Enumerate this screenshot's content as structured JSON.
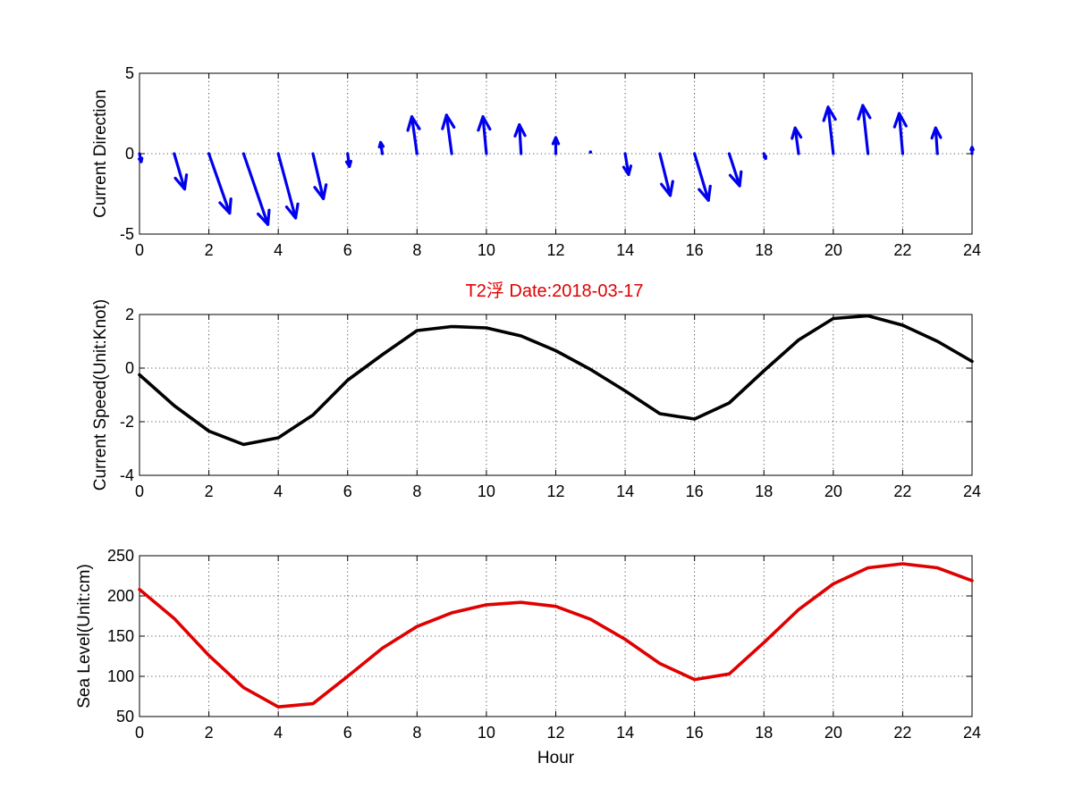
{
  "title": "T2浮   Date:2018-03-17",
  "colors": {
    "title": "#e00000",
    "direction": "#0000ee",
    "speed": "#000000",
    "sea_level": "#e00000"
  },
  "chart_data": [
    {
      "type": "quiver",
      "ylabel": "Current Direction",
      "xlabel": "",
      "xlim": [
        0,
        24
      ],
      "ylim": [
        -5,
        5
      ],
      "xticks": [
        0,
        2,
        4,
        6,
        8,
        10,
        12,
        14,
        16,
        18,
        20,
        22,
        24
      ],
      "yticks": [
        -5,
        0,
        5
      ],
      "grid": true,
      "x": [
        0,
        1,
        2,
        3,
        4,
        5,
        6,
        7,
        8,
        9,
        10,
        11,
        12,
        13,
        14,
        15,
        16,
        17,
        18,
        19,
        20,
        21,
        22,
        23,
        24
      ],
      "u": [
        0.05,
        0.3,
        0.6,
        0.7,
        0.5,
        0.3,
        0.05,
        -0.05,
        -0.15,
        -0.15,
        -0.1,
        -0.05,
        0,
        0,
        0.1,
        0.3,
        0.4,
        0.3,
        0.05,
        -0.1,
        -0.15,
        -0.15,
        -0.1,
        -0.05,
        0
      ],
      "v": [
        -0.5,
        -2.2,
        -3.7,
        -4.4,
        -4.0,
        -2.8,
        -0.8,
        0.7,
        2.3,
        2.4,
        2.3,
        1.8,
        1.0,
        0.1,
        -1.3,
        -2.6,
        -2.9,
        -2.0,
        -0.3,
        1.6,
        2.9,
        3.0,
        2.5,
        1.6,
        0.4
      ]
    },
    {
      "type": "line",
      "ylabel": "Current Speed(Unit:Knot)",
      "xlabel": "",
      "xlim": [
        0,
        24
      ],
      "ylim": [
        -4,
        2
      ],
      "xticks": [
        0,
        2,
        4,
        6,
        8,
        10,
        12,
        14,
        16,
        18,
        20,
        22,
        24
      ],
      "yticks": [
        -4,
        -2,
        0,
        2
      ],
      "grid": true,
      "x": [
        0,
        1,
        2,
        3,
        4,
        5,
        6,
        7,
        8,
        9,
        10,
        11,
        12,
        13,
        14,
        15,
        16,
        17,
        18,
        19,
        20,
        21,
        22,
        23,
        24
      ],
      "values": [
        -0.25,
        -1.4,
        -2.35,
        -2.85,
        -2.6,
        -1.75,
        -0.45,
        0.5,
        1.4,
        1.55,
        1.5,
        1.2,
        0.65,
        -0.05,
        -0.85,
        -1.7,
        -1.9,
        -1.3,
        -0.1,
        1.05,
        1.85,
        1.95,
        1.6,
        1.0,
        0.25
      ]
    },
    {
      "type": "line",
      "ylabel": "Sea Level(Unit:cm)",
      "xlabel": "Hour",
      "xlim": [
        0,
        24
      ],
      "ylim": [
        50,
        250
      ],
      "xticks": [
        0,
        2,
        4,
        6,
        8,
        10,
        12,
        14,
        16,
        18,
        20,
        22,
        24
      ],
      "yticks": [
        50,
        100,
        150,
        200,
        250
      ],
      "grid": true,
      "x": [
        0,
        1,
        2,
        3,
        4,
        5,
        6,
        7,
        8,
        9,
        10,
        11,
        12,
        13,
        14,
        15,
        16,
        17,
        18,
        19,
        20,
        21,
        22,
        23,
        24
      ],
      "values": [
        208,
        172,
        126,
        86,
        62,
        66,
        100,
        135,
        162,
        179,
        189,
        192,
        187,
        171,
        146,
        116,
        96,
        103,
        142,
        183,
        215,
        235,
        240,
        235,
        219
      ]
    }
  ]
}
